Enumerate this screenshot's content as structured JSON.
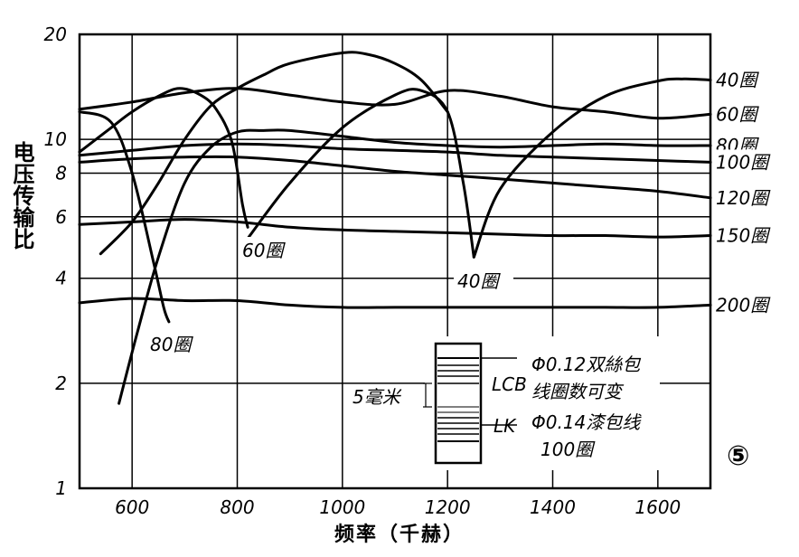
{
  "chart_data": {
    "type": "line",
    "xlabel": "频率（千赫）",
    "ylabel": "电压传输比",
    "x_scale": "linear",
    "y_scale": "log",
    "xlim": [
      500,
      1700
    ],
    "ylim": [
      1,
      20
    ],
    "x_ticks": [
      600,
      800,
      1000,
      1200,
      1400,
      1600
    ],
    "y_ticks": [
      {
        "value": 1,
        "label": "1"
      },
      {
        "value": 2,
        "label": "2"
      },
      {
        "value": 4,
        "label": "4"
      },
      {
        "value": 6,
        "label": "6"
      },
      {
        "value": 8,
        "label": "8"
      },
      {
        "value": 10,
        "label": "10"
      },
      {
        "value": 20,
        "label": "20"
      }
    ],
    "grid": true,
    "series": [
      {
        "name": "40圈",
        "x": [
          1250,
          1300,
          1400,
          1500,
          1600,
          1650,
          1700
        ],
        "y": [
          4.6,
          7.2,
          10.5,
          13.3,
          14.7,
          14.9,
          14.8
        ]
      },
      {
        "name": "40圈",
        "x": [
          820,
          900,
          1000,
          1100,
          1150,
          1200,
          1230,
          1250
        ],
        "y": [
          5.2,
          7.5,
          10.8,
          13.4,
          13.8,
          12.0,
          7.5,
          4.6
        ]
      },
      {
        "name": "60圈",
        "x": [
          500,
          600,
          700,
          800,
          900,
          1000,
          1100,
          1200,
          1300,
          1400,
          1500,
          1600,
          1700
        ],
        "y": [
          12.2,
          12.8,
          13.6,
          14.0,
          13.4,
          12.8,
          12.6,
          13.8,
          13.3,
          12.4,
          12.0,
          11.5,
          11.8
        ]
      },
      {
        "name": "60圈",
        "x": [
          540,
          600,
          650,
          700,
          750,
          800,
          850,
          900,
          1000,
          1050,
          1100,
          1150,
          1200
        ],
        "y": [
          4.7,
          5.8,
          7.5,
          10.0,
          12.5,
          14.0,
          15.3,
          16.5,
          17.7,
          17.5,
          16.5,
          14.8,
          12.0
        ]
      },
      {
        "name": "80圈",
        "x": [
          500,
          560,
          600,
          640,
          660,
          670
        ],
        "y": [
          12.0,
          11.2,
          8.0,
          4.5,
          3.3,
          3.0
        ]
      },
      {
        "name": "80圈",
        "x": [
          500,
          560,
          600,
          650,
          690,
          730,
          760,
          790,
          810,
          820
        ],
        "y": [
          9.2,
          10.8,
          12.0,
          13.3,
          14.0,
          13.4,
          12.2,
          9.8,
          6.5,
          5.6
        ]
      },
      {
        "name": "80圈",
        "x": [
          575,
          610,
          650,
          700,
          750,
          800,
          850,
          900,
          1000,
          1100,
          1200,
          1300,
          1400,
          1500,
          1600,
          1700
        ],
        "y": [
          1.75,
          2.8,
          4.6,
          7.5,
          9.5,
          10.5,
          10.6,
          10.6,
          10.2,
          9.8,
          9.6,
          9.5,
          9.6,
          9.7,
          9.6,
          9.6
        ]
      },
      {
        "name": "100圈",
        "x": [
          500,
          600,
          700,
          800,
          900,
          1000,
          1100,
          1200,
          1300,
          1400,
          1500,
          1600,
          1700
        ],
        "y": [
          9.0,
          9.3,
          9.6,
          9.7,
          9.6,
          9.4,
          9.3,
          9.2,
          9.0,
          8.9,
          8.8,
          8.7,
          8.6
        ]
      },
      {
        "name": "120圈",
        "x": [
          500,
          600,
          700,
          800,
          900,
          1000,
          1100,
          1200,
          1300,
          1400,
          1500,
          1600,
          1700
        ],
        "y": [
          8.6,
          8.8,
          8.9,
          8.9,
          8.7,
          8.4,
          8.1,
          7.9,
          7.7,
          7.5,
          7.3,
          7.1,
          6.8
        ]
      },
      {
        "name": "150圈",
        "x": [
          500,
          600,
          700,
          800,
          900,
          1000,
          1100,
          1200,
          1300,
          1400,
          1500,
          1600,
          1700
        ],
        "y": [
          5.7,
          5.8,
          5.9,
          5.8,
          5.6,
          5.5,
          5.45,
          5.4,
          5.35,
          5.3,
          5.3,
          5.25,
          5.3
        ]
      },
      {
        "name": "200圈",
        "x": [
          500,
          600,
          700,
          800,
          900,
          1000,
          1100,
          1200,
          1300,
          1400,
          1500,
          1600,
          1700
        ],
        "y": [
          3.4,
          3.5,
          3.45,
          3.45,
          3.35,
          3.3,
          3.3,
          3.3,
          3.3,
          3.3,
          3.3,
          3.3,
          3.35
        ]
      }
    ],
    "annotations": [
      "60圈",
      "80圈",
      "40圈"
    ],
    "inset": {
      "label_top_1": "Φ0.12双絲包",
      "label_top_2": "线圈数可变",
      "label_lcb": "LCB",
      "label_lk": "LK",
      "label_bottom_1": "Φ0.14漆包线",
      "label_bottom_2": "100圈",
      "dimension": "5毫米"
    },
    "figure_number": "⑤"
  }
}
